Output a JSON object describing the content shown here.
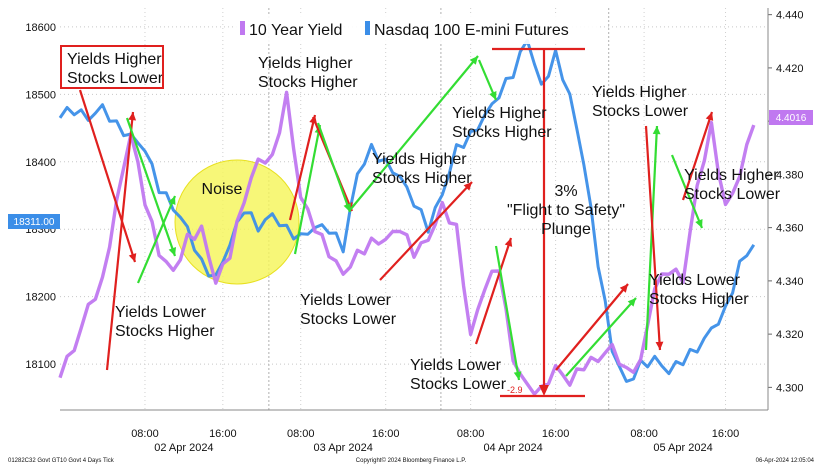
{
  "chart_data": {
    "type": "line",
    "legend": [
      {
        "name": "10 Year Yield",
        "color": "#c078f0",
        "axis": "right"
      },
      {
        "name": "Nasdaq 100 E-mini Futures",
        "color": "#3b8ee8",
        "axis": "left"
      }
    ],
    "left_axis": {
      "ticks": [
        "18600",
        "18500",
        "18400",
        "18300",
        "18200",
        "18100"
      ],
      "range": [
        18032,
        18628
      ]
    },
    "right_axis": {
      "ticks": [
        "4.440",
        "4.420",
        "4.400",
        "4.380",
        "4.360",
        "4.340",
        "4.320",
        "4.300"
      ],
      "range": [
        4.2915,
        4.4425
      ]
    },
    "current_values": {
      "left": "18311.00",
      "right": "4.4016"
    },
    "x_ticks": [
      "08:00",
      "16:00",
      "08:00",
      "16:00",
      "08:00",
      "16:00",
      "08:00",
      "16:00"
    ],
    "x_dates": [
      "02 Apr 2024",
      "03 Apr 2024",
      "04 Apr 2024",
      "05 Apr 2024"
    ],
    "x": [
      0,
      2,
      4,
      6,
      8,
      10,
      12,
      14,
      16,
      18,
      20,
      22,
      24,
      26,
      28,
      30,
      32,
      34,
      36,
      38,
      40,
      42,
      44,
      46,
      48,
      50,
      52,
      54,
      56,
      58,
      60,
      62,
      64,
      66,
      68,
      70,
      72,
      74,
      76,
      78,
      80,
      82,
      84,
      86,
      88,
      90,
      92,
      94,
      96,
      98
    ],
    "series": [
      {
        "name": "Nasdaq 100 E-mini Futures",
        "axis": "left",
        "values": [
          18470,
          18475,
          18462,
          18480,
          18455,
          18440,
          18420,
          18360,
          18330,
          18300,
          18250,
          18230,
          18280,
          18330,
          18300,
          18320,
          18300,
          18290,
          18305,
          18300,
          18270,
          18380,
          18420,
          18400,
          18380,
          18340,
          18300,
          18350,
          18420,
          18440,
          18470,
          18500,
          18530,
          18580,
          18510,
          18560,
          18500,
          18400,
          18250,
          18120,
          18070,
          18100,
          18110,
          18090,
          18105,
          18120,
          18150,
          18180,
          18250,
          18280
        ]
      },
      {
        "name": "10 Year Yield",
        "axis": "right",
        "values": [
          4.305,
          4.314,
          4.33,
          4.34,
          4.37,
          4.396,
          4.37,
          4.35,
          4.343,
          4.356,
          4.36,
          4.34,
          4.35,
          4.37,
          4.385,
          4.386,
          4.41,
          4.372,
          4.36,
          4.35,
          4.342,
          4.35,
          4.355,
          4.356,
          4.36,
          4.35,
          4.355,
          4.368,
          4.36,
          4.32,
          4.338,
          4.345,
          4.31,
          4.3,
          4.299,
          4.308,
          4.302,
          4.308,
          4.31,
          4.315,
          4.306,
          4.31,
          4.338,
          4.344,
          4.34,
          4.375,
          4.398,
          4.368,
          4.38,
          4.4
        ]
      }
    ],
    "annotations": [
      {
        "text": [
          "Yields Higher",
          "Stocks Lower"
        ]
      },
      {
        "text": [
          "Yields Lower",
          "Stocks Higher"
        ]
      },
      {
        "text": [
          "Noise"
        ]
      },
      {
        "text": [
          "Yields Higher",
          "Stocks Higher"
        ]
      },
      {
        "text": [
          "Yields Higher",
          "Stocks Higher"
        ]
      },
      {
        "text": [
          "Yields Lower",
          "Stocks Lower"
        ]
      },
      {
        "text": [
          "Yields Higher",
          "Stocks Higher"
        ]
      },
      {
        "text": [
          "Yields Lower",
          "Stocks Lower"
        ]
      },
      {
        "text": [
          "3%",
          "\"Flight to Safety\"",
          "Plunge"
        ]
      },
      {
        "text": [
          "Yields Higher",
          "Stocks Lower"
        ]
      },
      {
        "text": [
          "Yields Lower",
          "Stocks Higher"
        ]
      },
      {
        "text": [
          "Yields Higher",
          "Stocks Lower"
        ]
      }
    ],
    "drawdown_label": "-2.9",
    "footer": {
      "left": "01282C32 Govt GT10  Govt 4 Days  Tick",
      "center": "Copyright© 2024 Bloomberg Finance L.P.",
      "right": "06-Apr-2024 12:05:04"
    }
  }
}
